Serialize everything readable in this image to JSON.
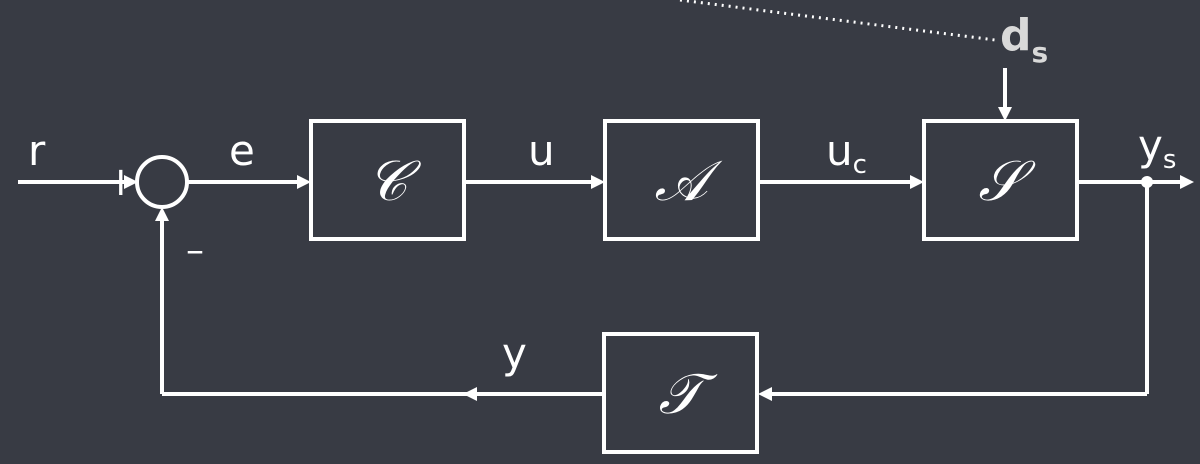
{
  "signals": {
    "r": "r",
    "e": "e",
    "u": "u",
    "uc_main": "u",
    "uc_sub": "c",
    "ys_main": "y",
    "ys_sub": "s",
    "y": "y",
    "ds_main": "d",
    "ds_sub": "s"
  },
  "summing_junction": {
    "plus_sign": "+",
    "minus_sign": "–"
  },
  "blocks": {
    "controller": "𝒞",
    "actuator": "𝒜",
    "system": "𝒮",
    "transducer": "𝒯"
  }
}
